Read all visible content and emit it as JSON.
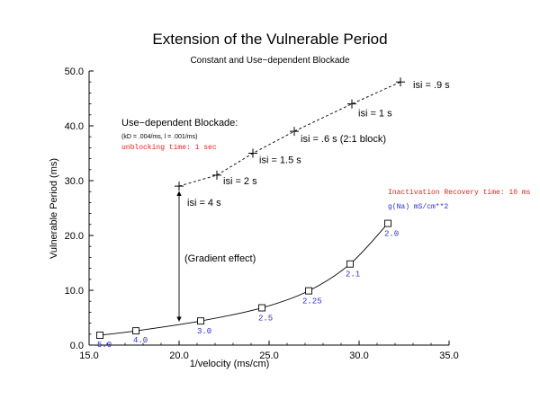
{
  "chart_data": {
    "type": "line",
    "title": "Extension of the Vulnerable Period",
    "subtitle": "Constant and Use−dependent Blockade",
    "xlabel": "1/velocity (ms/cm)",
    "ylabel": "Vulnerable Period (ms)",
    "xlim": [
      15.0,
      35.0
    ],
    "ylim": [
      0.0,
      50.0
    ],
    "x_ticks": [
      15.0,
      20.0,
      25.0,
      30.0,
      35.0
    ],
    "y_ticks": [
      0.0,
      10.0,
      20.0,
      30.0,
      40.0,
      50.0
    ],
    "x_tick_labels": [
      "15.0",
      "20.0",
      "25.0",
      "30.0",
      "35.0"
    ],
    "y_tick_labels": [
      "0.0",
      "10.0",
      "20.0",
      "30.0",
      "40.0",
      "50.0"
    ],
    "grid": false,
    "series": [
      {
        "marker": "plus",
        "line": "dashed",
        "color": "#000000",
        "points": [
          {
            "x": 20.0,
            "y": 29.0,
            "label": "isi = 4 s"
          },
          {
            "x": 22.1,
            "y": 31.0,
            "label": "isi = 2 s"
          },
          {
            "x": 24.1,
            "y": 35.0,
            "label": "isi = 1.5 s"
          },
          {
            "x": 26.4,
            "y": 39.0,
            "label": "isi = .6 s (2:1 block)"
          },
          {
            "x": 29.6,
            "y": 44.0,
            "label": "isi = 1 s"
          },
          {
            "x": 32.3,
            "y": 48.0,
            "label": "isi = .9 s"
          }
        ]
      },
      {
        "marker": "square",
        "line": "solid",
        "color": "#000000",
        "label_color": "#2b2bd6",
        "points": [
          {
            "x": 15.6,
            "y": 1.8,
            "label": "5.0"
          },
          {
            "x": 17.6,
            "y": 2.6,
            "label": "4.0"
          },
          {
            "x": 21.2,
            "y": 4.4,
            "label": "3.0"
          },
          {
            "x": 24.6,
            "y": 6.8,
            "label": "2.5"
          },
          {
            "x": 27.2,
            "y": 9.9,
            "label": "2.25"
          },
          {
            "x": 29.5,
            "y": 14.8,
            "label": "2.1"
          },
          {
            "x": 31.6,
            "y": 22.2,
            "label": "2.0"
          }
        ]
      }
    ],
    "annotations": {
      "use_dependent_title": "Use−dependent Blockade:",
      "use_dependent_params": "(kD = .004/ms,  l = .001/ms)",
      "unblocking_time": "unblocking time: 1 sec",
      "inactivation_recovery": "Inactivation Recovery time: 10 ms",
      "gna_legend": "g(Na)  mS/cm**2",
      "gradient_effect": "(Gradient effect)",
      "gradient_arrow": {
        "x": 20.0,
        "y_from": 29.0,
        "y_to": 4.2
      }
    },
    "colors": {
      "red_text": "#e8231d",
      "blue_text": "#2b2bd6"
    }
  }
}
